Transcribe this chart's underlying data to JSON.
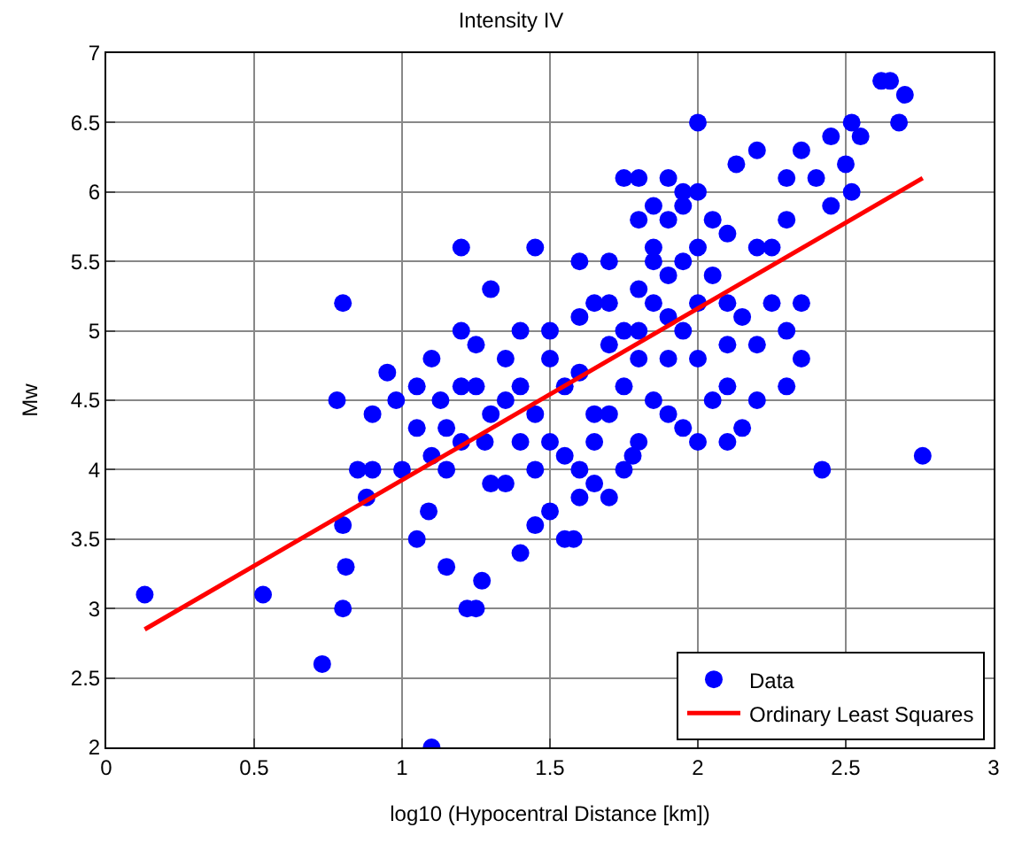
{
  "chart_data": {
    "type": "scatter",
    "title": "Intensity IV",
    "xlabel": "log10 (Hypocentral Distance [km])",
    "ylabel": "Mw",
    "xlim": [
      0,
      3
    ],
    "xticks": [
      0,
      0.5,
      1,
      1.5,
      2,
      2.5,
      3
    ],
    "ylim": [
      2,
      7
    ],
    "yticks": [
      2,
      2.5,
      3,
      3.5,
      4,
      4.5,
      5,
      5.5,
      6,
      6.5,
      7
    ],
    "grid": true,
    "legend": "bottom right",
    "series": [
      {
        "name": "Data",
        "color": "#0000ff",
        "marker": "circle",
        "x": [
          0.13,
          0.53,
          0.73,
          0.8,
          0.81,
          0.8,
          0.78,
          0.8,
          1.1,
          1.2,
          1.15,
          1.22,
          1.25,
          1.27,
          1.05,
          1.09,
          2.76,
          2.42,
          2.0,
          2.62,
          2.65,
          2.7,
          2.52,
          2.68,
          2.55,
          2.45,
          2.35,
          2.2,
          2.13,
          1.75,
          1.8,
          1.9,
          1.95,
          2.0,
          2.3,
          2.5,
          2.52,
          2.4,
          2.45,
          2.3,
          2.2,
          2.25,
          2.35,
          2.3,
          2.35,
          2.3,
          2.2,
          2.15,
          2.1,
          2.0,
          1.9,
          1.7,
          1.6,
          1.55,
          1.58,
          1.4,
          1.45,
          1.5,
          1.35,
          1.3,
          1.28,
          0.85,
          0.9,
          0.88,
          0.9,
          0.95,
          0.98,
          1.05,
          1.1,
          1.13,
          1.2,
          1.25,
          1.3,
          1.4,
          1.45,
          1.6,
          1.7,
          1.65,
          1.8,
          1.85,
          1.9,
          2.05,
          2.1,
          2.15,
          2.2,
          2.1,
          2.0,
          1.95,
          1.85,
          1.8,
          1.75,
          1.7,
          1.65,
          1.6,
          1.5,
          1.45,
          1.4,
          1.35,
          1.5,
          1.55,
          1.6,
          1.7,
          1.75,
          1.8,
          1.85,
          1.9,
          1.95,
          2.0,
          1.9,
          1.85,
          1.8,
          1.75,
          1.65,
          1.55,
          1.4,
          1.3,
          1.2,
          1.1,
          1.0,
          1.05,
          1.15,
          1.25,
          1.35,
          1.5,
          1.6,
          1.7,
          1.8,
          1.9,
          2.0,
          2.05,
          2.1,
          1.95,
          1.85,
          2.1,
          2.25,
          1.2,
          1.15,
          1.45,
          1.65,
          1.78,
          1.95,
          2.05
        ],
        "values": [
          3.1,
          3.1,
          2.6,
          3.0,
          3.3,
          3.6,
          4.5,
          5.2,
          2.0,
          5.6,
          3.3,
          3.0,
          3.0,
          3.2,
          3.5,
          3.7,
          4.1,
          4.0,
          6.5,
          6.8,
          6.8,
          6.7,
          6.5,
          6.5,
          6.4,
          6.4,
          6.3,
          6.3,
          6.2,
          6.1,
          6.1,
          6.1,
          6.0,
          6.0,
          6.1,
          6.2,
          6.0,
          6.1,
          5.9,
          5.8,
          5.6,
          5.6,
          5.2,
          5.0,
          4.8,
          4.6,
          4.5,
          4.3,
          4.2,
          4.2,
          4.4,
          3.8,
          3.8,
          3.5,
          3.5,
          3.4,
          3.6,
          3.7,
          3.9,
          3.9,
          4.2,
          4.0,
          4.0,
          3.8,
          4.4,
          4.7,
          4.5,
          4.6,
          4.8,
          4.5,
          5.0,
          4.9,
          5.3,
          5.0,
          5.6,
          5.5,
          5.5,
          5.2,
          5.8,
          5.5,
          5.4,
          5.4,
          5.2,
          5.1,
          4.9,
          4.6,
          4.8,
          5.0,
          5.2,
          4.8,
          4.6,
          4.4,
          4.2,
          4.0,
          4.2,
          4.4,
          4.6,
          4.5,
          4.8,
          4.6,
          4.7,
          4.9,
          5.0,
          5.3,
          5.6,
          5.8,
          5.5,
          5.2,
          4.8,
          4.5,
          4.2,
          4.0,
          4.4,
          4.1,
          4.2,
          4.4,
          4.2,
          4.1,
          4.0,
          4.3,
          4.3,
          4.6,
          4.8,
          5.0,
          5.1,
          5.2,
          5.0,
          5.1,
          5.6,
          5.8,
          5.7,
          5.9,
          5.9,
          4.9,
          5.2,
          4.6,
          4.0,
          4.0,
          3.9,
          4.1,
          4.3,
          4.5
        ]
      },
      {
        "name": "Ordinary Least Squares",
        "color": "#ff0000",
        "type": "line",
        "marker": "none",
        "x": [
          0.13,
          2.76
        ],
        "values": [
          2.85,
          6.1
        ]
      }
    ]
  }
}
